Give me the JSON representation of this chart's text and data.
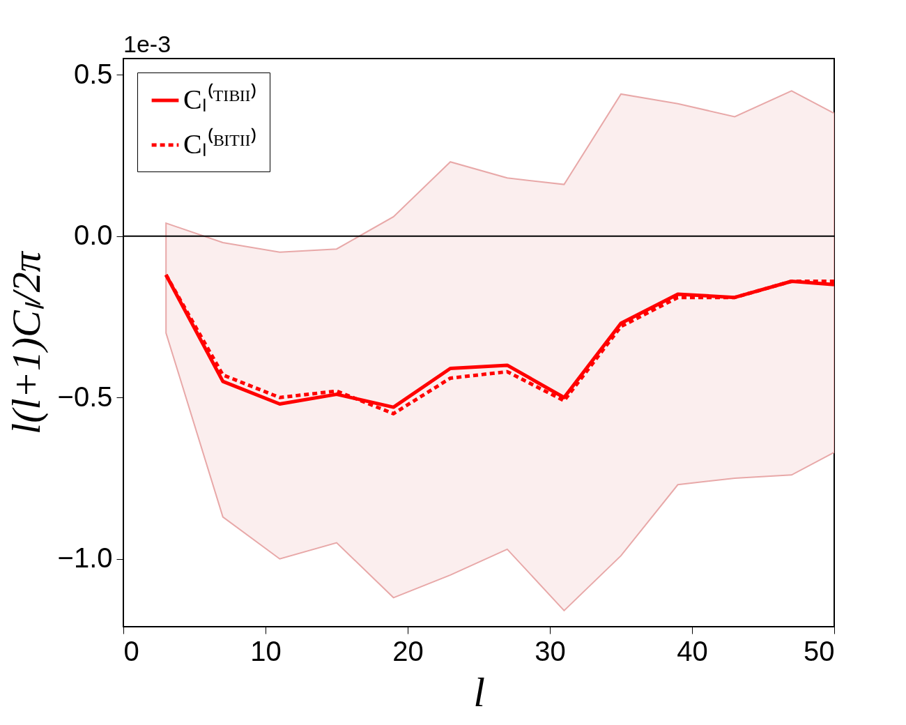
{
  "chart_data": {
    "type": "line",
    "xlabel": "l",
    "ylabel": "l(l+1)Cₗ/2π",
    "annotations": [
      "1e-3"
    ],
    "xlim": [
      0,
      50
    ],
    "xticks": [
      0,
      10,
      20,
      30,
      40,
      50
    ],
    "ylim": [
      -1.21,
      0.55
    ],
    "yticks": [
      {
        "value": -1.0,
        "label": "−1.0"
      },
      {
        "value": -0.5,
        "label": "−0.5"
      },
      {
        "value": 0,
        "label": "0.0"
      },
      {
        "value": 0.5,
        "label": "0.5"
      }
    ],
    "x": [
      3,
      7,
      11,
      15,
      19,
      23,
      27,
      31,
      35,
      39,
      43,
      47,
      50
    ],
    "series": [
      {
        "name": "Cₗ⁽ᵀᴵᴮᴵᴵ⁾",
        "color": "#ff0000",
        "line_style": "solid",
        "values": [
          -0.12,
          -0.45,
          -0.52,
          -0.49,
          -0.53,
          -0.41,
          -0.4,
          -0.5,
          -0.27,
          -0.18,
          -0.19,
          -0.14,
          -0.15
        ],
        "lower": [
          -0.3,
          -0.87,
          -1.0,
          -0.95,
          -1.12,
          -1.05,
          -0.97,
          -1.16,
          -0.99,
          -0.77,
          -0.75,
          -0.74,
          -0.67
        ],
        "upper": [
          0.04,
          -0.02,
          -0.05,
          -0.04,
          0.06,
          0.23,
          0.18,
          0.16,
          0.44,
          0.41,
          0.37,
          0.45,
          0.38
        ]
      },
      {
        "name": "Cₗ⁽ᴮᴵᵀᴵᴵ⁾",
        "color": "#ff0000",
        "line_style": "dashed",
        "values": [
          -0.12,
          -0.43,
          -0.5,
          -0.48,
          -0.55,
          -0.44,
          -0.42,
          -0.51,
          -0.28,
          -0.19,
          -0.19,
          -0.14,
          -0.14
        ]
      }
    ],
    "ref_lines": [
      {
        "axis": "y",
        "value": 0,
        "color": "#000000"
      }
    ],
    "legend": "top left",
    "grid": false
  }
}
